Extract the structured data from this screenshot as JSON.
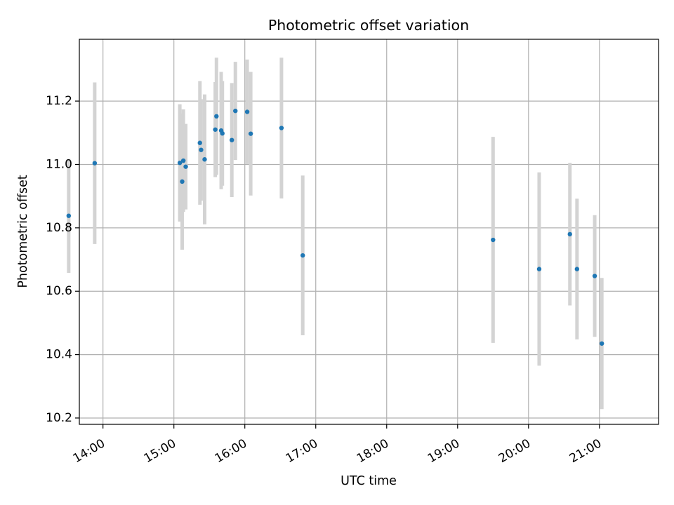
{
  "chart_data": {
    "type": "scatter",
    "title": "Photometric offset variation",
    "xlabel": "UTC time",
    "ylabel": "Photometric offset",
    "xlim": [
      "13:40",
      "21:50"
    ],
    "ylim": [
      10.18,
      11.395
    ],
    "grid": true,
    "xticks": [
      "14:00",
      "15:00",
      "16:00",
      "17:00",
      "18:00",
      "19:00",
      "20:00",
      "21:00"
    ],
    "yticks": [
      10.2,
      10.4,
      10.6,
      10.8,
      11.0,
      11.2
    ],
    "colors": {
      "point": "#1f77b4",
      "errorbar": "#d3d3d3",
      "grid": "#b0b0b0",
      "frame": "#000000"
    },
    "series": [
      {
        "points": [
          {
            "time": "13:31",
            "y": 10.838,
            "err": 0.18
          },
          {
            "time": "13:53",
            "y": 11.004,
            "err": 0.255
          },
          {
            "time": "15:05",
            "y": 11.005,
            "err": 0.185
          },
          {
            "time": "15:07",
            "y": 10.946,
            "err": 0.215
          },
          {
            "time": "15:08",
            "y": 11.012,
            "err": 0.162
          },
          {
            "time": "15:10",
            "y": 10.993,
            "err": 0.135
          },
          {
            "time": "15:22",
            "y": 11.068,
            "err": 0.195
          },
          {
            "time": "15:23",
            "y": 11.046,
            "err": 0.16
          },
          {
            "time": "15:26",
            "y": 11.016,
            "err": 0.205
          },
          {
            "time": "15:35",
            "y": 11.11,
            "err": 0.15
          },
          {
            "time": "15:36",
            "y": 11.152,
            "err": 0.185
          },
          {
            "time": "15:40",
            "y": 11.107,
            "err": 0.185
          },
          {
            "time": "15:41",
            "y": 11.098,
            "err": 0.165
          },
          {
            "time": "15:49",
            "y": 11.077,
            "err": 0.18
          },
          {
            "time": "15:52",
            "y": 11.169,
            "err": 0.155
          },
          {
            "time": "16:02",
            "y": 11.166,
            "err": 0.165
          },
          {
            "time": "16:05",
            "y": 11.097,
            "err": 0.195
          },
          {
            "time": "16:31",
            "y": 11.115,
            "err": 0.222
          },
          {
            "time": "16:49",
            "y": 10.713,
            "err": 0.252
          },
          {
            "time": "19:30",
            "y": 10.762,
            "err": 0.325
          },
          {
            "time": "20:09",
            "y": 10.67,
            "err": 0.305
          },
          {
            "time": "20:35",
            "y": 10.78,
            "err": 0.225
          },
          {
            "time": "20:41",
            "y": 10.67,
            "err": 0.222
          },
          {
            "time": "20:56",
            "y": 10.648,
            "err": 0.192
          },
          {
            "time": "21:02",
            "y": 10.435,
            "err": 0.207
          }
        ]
      }
    ]
  }
}
